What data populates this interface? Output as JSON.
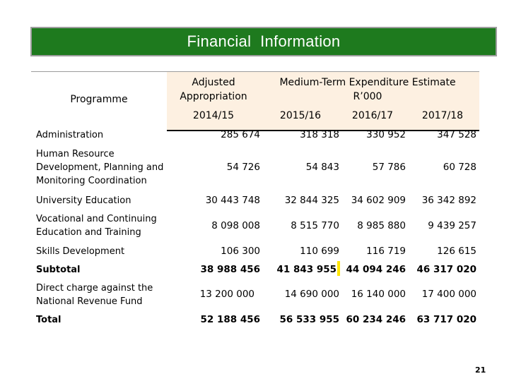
{
  "title": "Financial  Information",
  "headers": {
    "programme": "Programme",
    "adjusted": "Adjusted Appropriation",
    "mtee": "Medium-Term Expenditure Estimate",
    "mtee_unit": "R’000",
    "years": [
      "2014/15",
      "2015/16",
      "2016/17",
      "2017/18"
    ]
  },
  "rows": [
    {
      "label": "Administration",
      "values": [
        "285 674",
        "318 318",
        "330 952",
        "347 528"
      ],
      "bold": false
    },
    {
      "label": "Human Resource Development, Planning and Monitoring Coordination",
      "values": [
        "54 726",
        "54 843",
        "57 786",
        "60 728"
      ],
      "bold": false
    },
    {
      "label": "University Education",
      "values": [
        "30 443 748",
        "32 844 325",
        "34 602 909",
        "36 342 892"
      ],
      "bold": false
    },
    {
      "label": "Vocational and Continuing Education and Training",
      "values": [
        "8 098 008",
        "8 515 770",
        "8 985 880",
        "9 439 257"
      ],
      "bold": false
    },
    {
      "label": "Skills Development",
      "values": [
        "106 300",
        "110 699",
        "116  719",
        "126 615"
      ],
      "bold": false
    },
    {
      "label": "Subtotal",
      "values": [
        "38 988 456",
        "41 843 955",
        "44 094 246",
        "46 317 020"
      ],
      "bold": true
    },
    {
      "label": "Direct charge against the National Revenue Fund",
      "values": [
        "13 200 000",
        "14  690 000",
        "16 140 000",
        "17  400 000"
      ],
      "bold": false
    },
    {
      "label": "Total",
      "values": [
        "52 188 456",
        "56 533 955",
        "60 234 246",
        "63 717 020"
      ],
      "bold": true
    }
  ],
  "page_number": "21"
}
